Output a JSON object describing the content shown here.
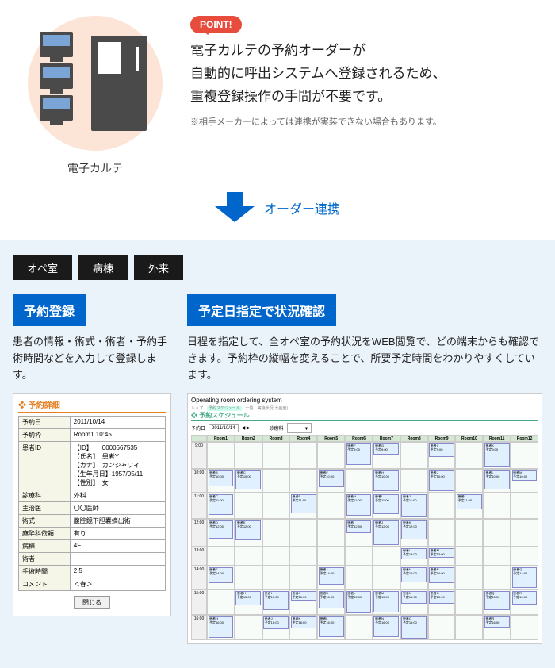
{
  "top": {
    "icon_label": "電子カルテ",
    "point_badge": "POINT!",
    "point_text_1": "電子カルテの予約オーダーが",
    "point_text_2": "自動的に呼出システムへ登録されるため、",
    "point_text_3": "重複登録操作の手間が不要です。",
    "point_note": "※相手メーカーによっては連携が実装できない場合もあります。"
  },
  "arrow_label": "オーダー連携",
  "tabs": [
    "オペ室",
    "病棟",
    "外来"
  ],
  "left_panel": {
    "title": "予約登録",
    "desc": "患者の情報・術式・術者・予約手術時間などを入力して登録します。",
    "mock_title": "予約詳細",
    "rows": [
      {
        "label": "予約日",
        "value": "2011/10/14"
      },
      {
        "label": "予約枠",
        "value": "Room1 10:45"
      },
      {
        "label": "患者ID",
        "value": "【ID】　　0000667535\n【氏名】　患者Y\n【カナ】　カンジャワイ\n【生年月日】1957/05/11\n【性別】　女"
      },
      {
        "label": "診療科",
        "value": "外科"
      },
      {
        "label": "主治医",
        "value": "〇〇医師"
      },
      {
        "label": "術式",
        "value": "腹腔鏡下胆嚢摘出術"
      },
      {
        "label": "麻酔科依頼",
        "value": "有り"
      },
      {
        "label": "病棟",
        "value": "4F"
      },
      {
        "label": "術者",
        "value": ""
      },
      {
        "label": "手術時間",
        "value": "2.5"
      },
      {
        "label": "コメント",
        "value": "＜春＞"
      }
    ],
    "close_btn": "閉じる"
  },
  "right_panel": {
    "title": "予定日指定で状況確認",
    "desc": "日程を指定して、全オペ室の予約状況をWEB閲覧で、どの端末からも確認できます。予約枠の縦幅を変えることで、所要予定時間をわかりやすくしています。",
    "sched_header": "Operating room ordering system",
    "sched_title": "予約スケジュール",
    "sched_date": "2011/10/14",
    "sched_filter": "診療科",
    "rooms": [
      "Room1",
      "Room2",
      "Room3",
      "Room4",
      "Room5",
      "Room6",
      "Room7",
      "Room8",
      "Room9",
      "Room10",
      "Room11",
      "Room12"
    ],
    "times": [
      "9:00",
      "10:00",
      "11:00",
      "12:00",
      "13:00",
      "14:00",
      "15:00",
      "16:00"
    ]
  }
}
